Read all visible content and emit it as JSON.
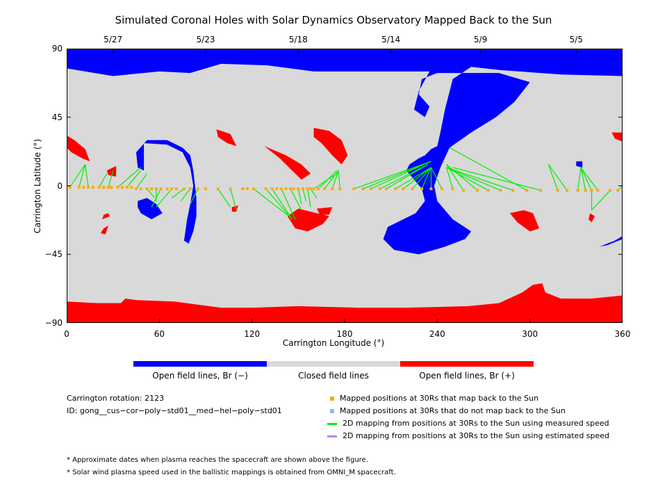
{
  "chart_data": {
    "type": "heatmap",
    "title": "Simulated Coronal Holes with Solar Dynamics Observatory Mapped Back to the Sun",
    "xlabel": "Carrington Longitude (°)",
    "ylabel": "Carrington Latitude (°)",
    "xlim": [
      0,
      360
    ],
    "ylim": [
      -90,
      90
    ],
    "x_ticks": [
      "0",
      "60",
      "120",
      "180",
      "240",
      "300",
      "360"
    ],
    "y_ticks": [
      "90",
      "45",
      "0",
      "−45",
      "−90"
    ],
    "top_dates": [
      {
        "label": "5/27",
        "x": 30
      },
      {
        "label": "5/23",
        "x": 90
      },
      {
        "label": "5/18",
        "x": 150
      },
      {
        "label": "5/14",
        "x": 210
      },
      {
        "label": "5/9",
        "x": 268
      },
      {
        "label": "5/5",
        "x": 330
      }
    ],
    "colors": {
      "open_negative": "#0000ff",
      "closed": "#d9d9d9",
      "open_positive": "#ff0000",
      "mapped": "#ffaa00",
      "unmapped": "#88bbee",
      "measured": "#00ee00",
      "estimated": "#bb88ee"
    },
    "regions": {
      "blue": [
        [
          [
            0,
            90
          ],
          [
            360,
            90
          ],
          [
            360,
            72
          ],
          [
            320,
            73
          ],
          [
            280,
            76
          ],
          [
            262,
            78
          ],
          [
            250,
            70
          ],
          [
            245,
            50
          ],
          [
            242,
            35
          ],
          [
            240,
            26
          ],
          [
            236,
            24
          ],
          [
            232,
            20
          ],
          [
            228,
            18
          ],
          [
            222,
            14
          ],
          [
            220,
            10
          ],
          [
            225,
            4
          ],
          [
            230,
            -2
          ],
          [
            232,
            -10
          ],
          [
            226,
            -18
          ],
          [
            208,
            -27
          ],
          [
            205,
            -35
          ],
          [
            212,
            -42
          ],
          [
            228,
            -45
          ],
          [
            245,
            -40
          ],
          [
            258,
            -35
          ],
          [
            262,
            -30
          ],
          [
            250,
            -22
          ],
          [
            240,
            -10
          ],
          [
            238,
            0
          ],
          [
            242,
            12
          ],
          [
            248,
            25
          ],
          [
            262,
            35
          ],
          [
            278,
            45
          ],
          [
            290,
            55
          ],
          [
            300,
            68
          ],
          [
            280,
            74
          ],
          [
            240,
            74
          ],
          [
            230,
            70
          ],
          [
            228,
            60
          ],
          [
            235,
            52
          ],
          [
            232,
            45
          ],
          [
            225,
            50
          ],
          [
            228,
            62
          ],
          [
            235,
            75
          ],
          [
            160,
            75
          ],
          [
            130,
            79
          ],
          [
            100,
            80
          ],
          [
            80,
            74
          ],
          [
            60,
            75
          ],
          [
            30,
            72
          ],
          [
            0,
            77
          ]
        ],
        [
          [
            50,
            28
          ],
          [
            65,
            27
          ],
          [
            75,
            22
          ],
          [
            80,
            12
          ],
          [
            82,
            0
          ],
          [
            80,
            -12
          ],
          [
            78,
            -22
          ],
          [
            76,
            -36
          ],
          [
            79,
            -38
          ],
          [
            82,
            -30
          ],
          [
            84,
            -20
          ],
          [
            84,
            -8
          ],
          [
            82,
            10
          ],
          [
            80,
            20
          ],
          [
            75,
            25
          ],
          [
            65,
            30
          ],
          [
            52,
            30
          ],
          [
            45,
            22
          ],
          [
            46,
            12
          ],
          [
            50,
            10
          ]
        ],
        [
          [
            46,
            -10
          ],
          [
            52,
            -8
          ],
          [
            58,
            -12
          ],
          [
            62,
            -18
          ],
          [
            55,
            -22
          ],
          [
            48,
            -18
          ],
          [
            46,
            -14
          ]
        ],
        [
          [
            330,
            16
          ],
          [
            334,
            16
          ],
          [
            334,
            12
          ],
          [
            330,
            13
          ]
        ],
        [
          [
            345,
            -40
          ],
          [
            355,
            -36
          ],
          [
            360,
            -33
          ],
          [
            360,
            -35
          ],
          [
            350,
            -39
          ]
        ]
      ],
      "red": [
        [
          [
            0,
            -90
          ],
          [
            360,
            -90
          ],
          [
            360,
            -72
          ],
          [
            340,
            -74
          ],
          [
            320,
            -74
          ],
          [
            310,
            -70
          ],
          [
            308,
            -64
          ],
          [
            302,
            -65
          ],
          [
            295,
            -70
          ],
          [
            280,
            -77
          ],
          [
            260,
            -79
          ],
          [
            220,
            -80
          ],
          [
            190,
            -80
          ],
          [
            150,
            -79
          ],
          [
            120,
            -80
          ],
          [
            100,
            -80
          ],
          [
            85,
            -78
          ],
          [
            70,
            -76
          ],
          [
            45,
            -75
          ],
          [
            38,
            -74
          ],
          [
            35,
            -77
          ],
          [
            20,
            -77
          ],
          [
            0,
            -76
          ]
        ],
        [
          [
            0,
            33
          ],
          [
            5,
            30
          ],
          [
            12,
            24
          ],
          [
            15,
            16
          ],
          [
            10,
            18
          ],
          [
            3,
            22
          ],
          [
            0,
            25
          ]
        ],
        [
          [
            26,
            10
          ],
          [
            32,
            13
          ],
          [
            32,
            6
          ],
          [
            27,
            7
          ]
        ],
        [
          [
            97,
            37
          ],
          [
            106,
            34
          ],
          [
            110,
            26
          ],
          [
            104,
            28
          ],
          [
            98,
            32
          ]
        ],
        [
          [
            128,
            26
          ],
          [
            142,
            20
          ],
          [
            152,
            14
          ],
          [
            158,
            8
          ],
          [
            152,
            4
          ],
          [
            146,
            10
          ],
          [
            138,
            18
          ]
        ],
        [
          [
            160,
            38
          ],
          [
            170,
            36
          ],
          [
            178,
            30
          ],
          [
            182,
            20
          ],
          [
            178,
            14
          ],
          [
            172,
            20
          ],
          [
            165,
            28
          ],
          [
            160,
            32
          ]
        ],
        [
          [
            150,
            -15
          ],
          [
            170,
            -20
          ],
          [
            166,
            -25
          ],
          [
            156,
            -30
          ],
          [
            148,
            -28
          ],
          [
            143,
            -20
          ]
        ],
        [
          [
            162,
            -15
          ],
          [
            172,
            -14
          ],
          [
            170,
            -19
          ],
          [
            164,
            -19
          ]
        ],
        [
          [
            107,
            -14
          ],
          [
            111,
            -13
          ],
          [
            110,
            -17
          ],
          [
            107,
            -17
          ]
        ],
        [
          [
            23,
            -22
          ],
          [
            28,
            -20
          ],
          [
            27,
            -18
          ],
          [
            24,
            -19
          ]
        ],
        [
          [
            24,
            -28
          ],
          [
            27,
            -26
          ],
          [
            25,
            -32
          ],
          [
            22,
            -31
          ]
        ],
        [
          [
            287,
            -18
          ],
          [
            296,
            -16
          ],
          [
            302,
            -18
          ],
          [
            306,
            -28
          ],
          [
            300,
            -30
          ],
          [
            292,
            -24
          ]
        ],
        [
          [
            339,
            -18
          ],
          [
            342,
            -20
          ],
          [
            340,
            -24
          ],
          [
            338,
            -22
          ]
        ],
        [
          [
            353,
            35
          ],
          [
            360,
            35
          ],
          [
            360,
            29
          ],
          [
            355,
            31
          ]
        ]
      ]
    },
    "mapped_points": [
      [
        2,
        -1
      ],
      [
        8,
        -1
      ],
      [
        11,
        -1
      ],
      [
        14,
        -1
      ],
      [
        17,
        -1
      ],
      [
        21,
        -1
      ],
      [
        24,
        -1
      ],
      [
        27,
        -1
      ],
      [
        29,
        -1
      ],
      [
        33,
        -1
      ],
      [
        36,
        -1
      ],
      [
        39,
        -1
      ],
      [
        42,
        -1
      ],
      [
        45,
        -2
      ],
      [
        48,
        -2
      ],
      [
        52,
        -2
      ],
      [
        55,
        -2
      ],
      [
        58,
        -2
      ],
      [
        61,
        -2
      ],
      [
        65,
        -2
      ],
      [
        68,
        -2
      ],
      [
        71,
        -2
      ],
      [
        76,
        -2
      ],
      [
        80,
        -2
      ],
      [
        85,
        -2
      ],
      [
        90,
        -2
      ],
      [
        98,
        -2
      ],
      [
        106,
        -2
      ],
      [
        114,
        -2
      ],
      [
        117,
        -2
      ],
      [
        121,
        -2
      ],
      [
        129,
        -2
      ],
      [
        133,
        -2
      ],
      [
        136,
        -2
      ],
      [
        139,
        -2
      ],
      [
        142,
        -2
      ],
      [
        145,
        -2
      ],
      [
        147,
        -2
      ],
      [
        150,
        -2
      ],
      [
        153,
        -2
      ],
      [
        156,
        -2
      ],
      [
        158,
        -2
      ],
      [
        160,
        -2
      ],
      [
        163,
        -2
      ],
      [
        167,
        -2
      ],
      [
        172,
        -2
      ],
      [
        177,
        -2
      ],
      [
        186,
        -2
      ],
      [
        192,
        -2
      ],
      [
        197,
        -2
      ],
      [
        203,
        -2
      ],
      [
        207,
        -2
      ],
      [
        213,
        -2
      ],
      [
        218,
        -2
      ],
      [
        224,
        -2
      ],
      [
        230,
        -2
      ],
      [
        236,
        -2
      ],
      [
        243,
        -2
      ],
      [
        250,
        -2
      ],
      [
        257,
        -3
      ],
      [
        266,
        -3
      ],
      [
        273,
        -3
      ],
      [
        281,
        -3
      ],
      [
        289,
        -3
      ],
      [
        298,
        -3
      ],
      [
        307,
        -3
      ],
      [
        318,
        -3
      ],
      [
        324,
        -3
      ],
      [
        331,
        -3
      ],
      [
        336,
        -3
      ],
      [
        340,
        -3
      ],
      [
        344,
        -3
      ],
      [
        352,
        -3
      ],
      [
        357,
        -3
      ]
    ],
    "mapping_lines": [
      [
        2,
        -1,
        12,
        14
      ],
      [
        8,
        -1,
        12,
        14
      ],
      [
        14,
        -1,
        12,
        14
      ],
      [
        21,
        -1,
        26,
        8
      ],
      [
        27,
        -1,
        30,
        10
      ],
      [
        33,
        -1,
        48,
        12
      ],
      [
        39,
        -1,
        48,
        10
      ],
      [
        45,
        -2,
        52,
        8
      ],
      [
        52,
        -2,
        57,
        -8
      ],
      [
        58,
        -2,
        58,
        -10
      ],
      [
        61,
        -2,
        55,
        -14
      ],
      [
        68,
        -2,
        58,
        -14
      ],
      [
        76,
        -2,
        68,
        -8
      ],
      [
        80,
        -2,
        74,
        -10
      ],
      [
        85,
        -2,
        80,
        -12
      ],
      [
        98,
        -2,
        106,
        -14
      ],
      [
        106,
        -2,
        110,
        -16
      ],
      [
        121,
        -2,
        144,
        -20
      ],
      [
        129,
        -2,
        146,
        -22
      ],
      [
        133,
        -2,
        146,
        -22
      ],
      [
        139,
        -2,
        148,
        -22
      ],
      [
        145,
        -2,
        152,
        -16
      ],
      [
        150,
        -2,
        152,
        -12
      ],
      [
        153,
        -2,
        155,
        -10
      ],
      [
        156,
        -2,
        158,
        -14
      ],
      [
        158,
        -2,
        162,
        -8
      ],
      [
        160,
        -2,
        175,
        8
      ],
      [
        163,
        -2,
        175,
        10
      ],
      [
        167,
        -2,
        176,
        10
      ],
      [
        172,
        -2,
        176,
        10
      ],
      [
        177,
        -2,
        176,
        10
      ],
      [
        186,
        -2,
        236,
        16
      ],
      [
        192,
        -2,
        236,
        16
      ],
      [
        197,
        -2,
        236,
        16
      ],
      [
        203,
        -2,
        234,
        14
      ],
      [
        207,
        -2,
        234,
        14
      ],
      [
        213,
        -2,
        236,
        12
      ],
      [
        218,
        -2,
        236,
        12
      ],
      [
        224,
        -2,
        236,
        12
      ],
      [
        230,
        -2,
        236,
        12
      ],
      [
        236,
        -2,
        236,
        12
      ],
      [
        243,
        -2,
        236,
        12
      ],
      [
        250,
        -2,
        246,
        12
      ],
      [
        257,
        -3,
        246,
        14
      ],
      [
        266,
        -3,
        246,
        14
      ],
      [
        273,
        -3,
        246,
        12
      ],
      [
        281,
        -3,
        246,
        12
      ],
      [
        289,
        -3,
        246,
        12
      ],
      [
        298,
        -3,
        248,
        25
      ],
      [
        307,
        -3,
        250,
        12
      ],
      [
        318,
        -3,
        312,
        14
      ],
      [
        324,
        -3,
        312,
        14
      ],
      [
        331,
        -3,
        333,
        12
      ],
      [
        336,
        -3,
        333,
        12
      ],
      [
        340,
        -3,
        333,
        12
      ],
      [
        344,
        -3,
        333,
        12
      ],
      [
        340,
        -3,
        340,
        -16
      ],
      [
        352,
        -3,
        340,
        -16
      ],
      [
        357,
        -3,
        360,
        0
      ]
    ]
  },
  "colorbar": {
    "colors": [
      "#0000ff",
      "#d9d9d9",
      "#ff0000"
    ],
    "labels": [
      "Open field lines, Br (−)",
      "Closed field lines",
      "Open field lines, Br (+)"
    ]
  },
  "info": {
    "rotation": "Carrington rotation: 2123",
    "id": "ID: gong__cus−cor−poly−std01__med−hel−poly−std01"
  },
  "legend": [
    {
      "label": "Mapped positions at 30Rs that map back to the Sun",
      "color": "#ffaa00",
      "shape": "square"
    },
    {
      "label": "Mapped positions at 30Rs that do not map back to the Sun",
      "color": "#88bbee",
      "shape": "square"
    },
    {
      "label": "2D mapping from positions at 30Rs to the Sun using measured speed",
      "color": "#00ee00",
      "shape": "line"
    },
    {
      "label": "2D mapping from positions at 30Rs to the Sun using estimated speed",
      "color": "#bb88ee",
      "shape": "line"
    }
  ],
  "notes": [
    "* Approximate dates when plasma reaches the spacecraft are shown above the figure.",
    "* Solar wind plasma speed used in the ballistic mappings is obtained from OMNI_M spacecraft."
  ]
}
